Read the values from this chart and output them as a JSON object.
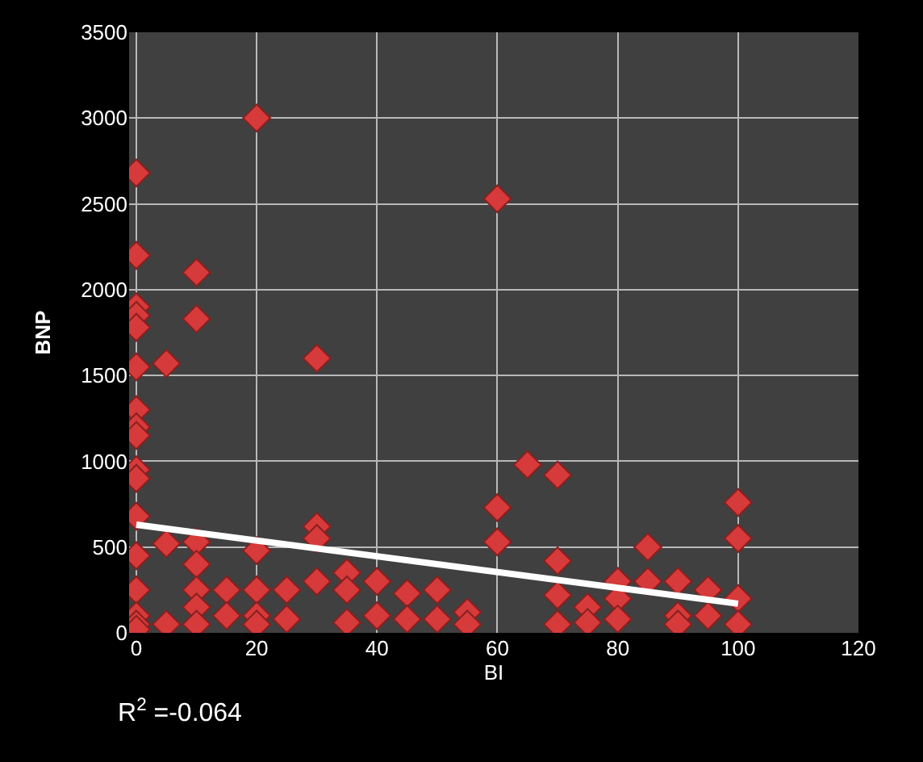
{
  "chart_data": {
    "type": "scatter",
    "xlabel": "BI",
    "ylabel": "BNP",
    "xlim": [
      0,
      120
    ],
    "xticks": [
      0,
      20,
      40,
      60,
      80,
      100,
      120
    ],
    "ylim": [
      0,
      3500
    ],
    "yticks": [
      0,
      500,
      1000,
      1500,
      2000,
      2500,
      3000,
      3500
    ],
    "grid": true,
    "marker": "diamond",
    "annotations": [
      "R$^{2}$ =-0.064"
    ],
    "series": [
      {
        "color": "#d63a3a",
        "x": [
          0,
          0,
          0,
          0,
          0,
          0,
          0,
          0,
          0,
          0,
          0,
          0,
          0,
          0,
          0,
          0,
          0,
          5,
          5,
          5,
          10,
          10,
          10,
          10,
          10,
          10,
          10,
          15,
          15,
          20,
          20,
          20,
          20,
          20,
          25,
          25,
          30,
          30,
          30,
          30,
          35,
          35,
          35,
          40,
          40,
          45,
          45,
          50,
          50,
          55,
          55,
          60,
          60,
          60,
          65,
          70,
          70,
          70,
          70,
          75,
          75,
          80,
          80,
          80,
          85,
          85,
          90,
          90,
          90,
          95,
          95,
          100,
          100,
          100,
          100
        ],
        "values": [
          2680,
          2200,
          1900,
          1850,
          1780,
          1550,
          1300,
          1200,
          1150,
          950,
          900,
          680,
          450,
          250,
          100,
          50,
          20,
          1570,
          520,
          50,
          2100,
          1830,
          530,
          400,
          250,
          150,
          50,
          250,
          100,
          3000,
          480,
          250,
          100,
          50,
          250,
          80,
          1600,
          620,
          550,
          300,
          350,
          250,
          60,
          300,
          100,
          230,
          80,
          250,
          80,
          120,
          50,
          2530,
          730,
          530,
          980,
          920,
          420,
          220,
          50,
          150,
          60,
          300,
          200,
          80,
          500,
          300,
          300,
          100,
          50,
          250,
          100,
          760,
          550,
          200,
          50
        ]
      },
      {
        "type": "line",
        "color": "#ffffff",
        "x": [
          0,
          100
        ],
        "values": [
          630,
          170
        ],
        "marker": "none",
        "line_style": "solid"
      }
    ]
  }
}
